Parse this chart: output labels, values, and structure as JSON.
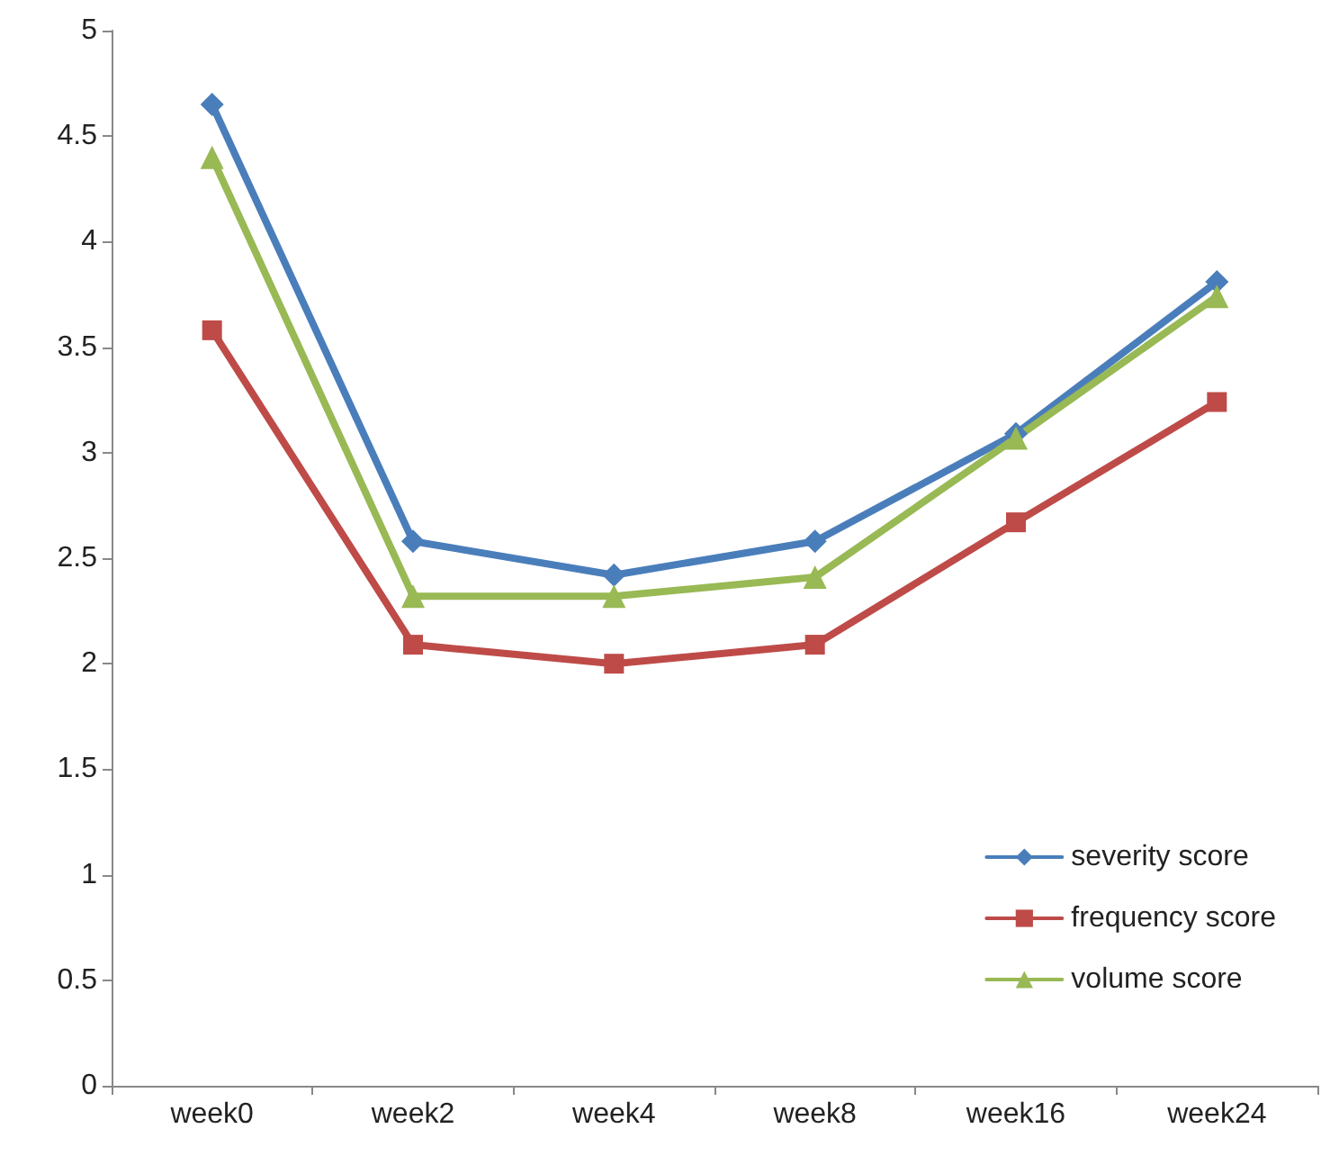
{
  "chart_data": {
    "type": "line",
    "categories": [
      "week0",
      "week2",
      "week4",
      "week8",
      "week16",
      "week24"
    ],
    "series": [
      {
        "name": "severity score",
        "color": "#4a7ebb",
        "marker": "diamond",
        "values": [
          4.65,
          2.58,
          2.42,
          2.58,
          3.09,
          3.81
        ]
      },
      {
        "name": "frequency score",
        "color": "#be4b48",
        "marker": "square",
        "values": [
          3.58,
          2.09,
          2.0,
          2.09,
          2.67,
          3.24
        ]
      },
      {
        "name": "volume score",
        "color": "#98b954",
        "marker": "triangle",
        "values": [
          4.4,
          2.32,
          2.32,
          2.41,
          3.07,
          3.74
        ]
      }
    ],
    "ylim": [
      0,
      5
    ],
    "yticks": [
      0,
      0.5,
      1,
      1.5,
      2,
      2.5,
      3,
      3.5,
      4,
      4.5,
      5
    ],
    "grid": false,
    "legend": "bottom right"
  }
}
